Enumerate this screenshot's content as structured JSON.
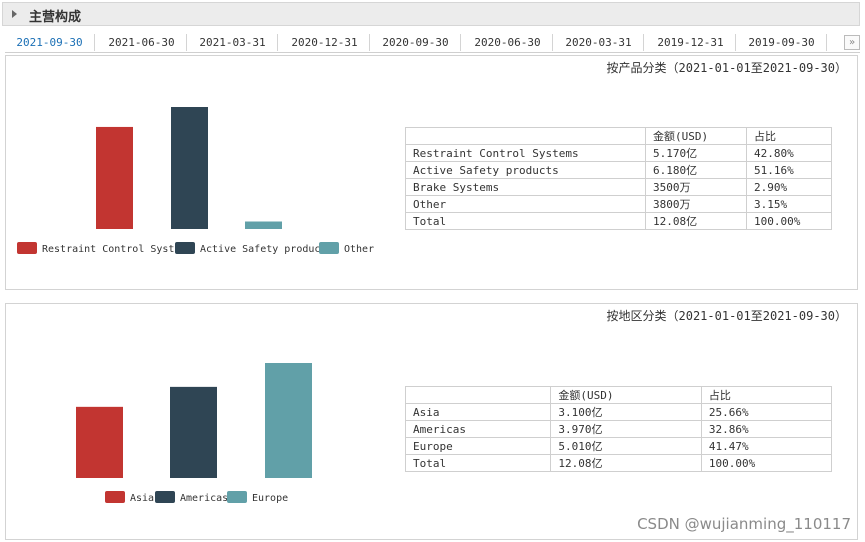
{
  "section": {
    "title": "主营构成"
  },
  "tabs": [
    "2021-09-30",
    "2021-06-30",
    "2021-03-31",
    "2020-12-31",
    "2020-09-30",
    "2020-06-30",
    "2020-03-31",
    "2019-12-31",
    "2019-09-30"
  ],
  "tabs_more": "»",
  "panel1": {
    "title": "按产品分类（2021-01-01至2021-09-30）",
    "table": {
      "headers": [
        "",
        "金额(USD)",
        "占比"
      ],
      "rows": [
        [
          "Restraint Control Systems",
          "5.170亿",
          "42.80%"
        ],
        [
          "Active Safety products",
          "6.180亿",
          "51.16%"
        ],
        [
          "Brake Systems",
          "3500万",
          "2.90%"
        ],
        [
          "Other",
          "3800万",
          "3.15%"
        ],
        [
          "Total",
          "12.08亿",
          "100.00%"
        ]
      ]
    }
  },
  "panel2": {
    "title": "按地区分类（2021-01-01至2021-09-30）",
    "table": {
      "headers": [
        "",
        "金额(USD)",
        "占比"
      ],
      "rows": [
        [
          "Asia",
          "3.100亿",
          "25.66%"
        ],
        [
          "Americas",
          "3.970亿",
          "32.86%"
        ],
        [
          "Europe",
          "5.010亿",
          "41.47%"
        ],
        [
          "Total",
          "12.08亿",
          "100.00%"
        ]
      ]
    }
  },
  "chart_data": [
    {
      "type": "bar",
      "categories": [
        "Restraint Control Systems",
        "Active Safety products",
        "Other"
      ],
      "values": [
        5.17,
        6.18,
        0.38
      ],
      "unit": "亿",
      "colors": [
        "#c23531",
        "#2f4554",
        "#61a0a8"
      ],
      "legend": [
        "Restraint Control Systems",
        "Active Safety products",
        "Other"
      ],
      "legend_position": "bottom",
      "grid": false
    },
    {
      "type": "bar",
      "categories": [
        "Asia",
        "Americas",
        "Europe"
      ],
      "values": [
        3.1,
        3.97,
        5.01
      ],
      "unit": "亿",
      "colors": [
        "#c23531",
        "#2f4554",
        "#61a0a8"
      ],
      "legend": [
        "Asia",
        "Americas",
        "Europe"
      ],
      "legend_position": "bottom",
      "grid": false
    }
  ],
  "watermark": "CSDN @wujianming_110117"
}
